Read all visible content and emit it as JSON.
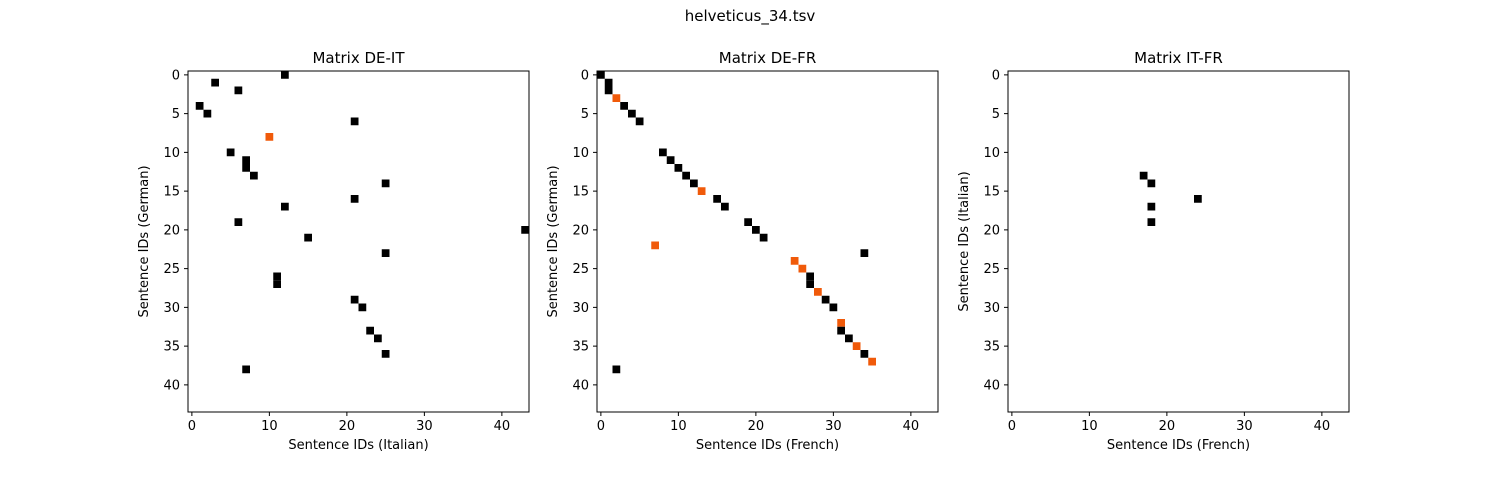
{
  "figure": {
    "suptitle": "helveticus_34.tsv"
  },
  "colors": {
    "match": "#000000",
    "highlight": "#f05a0a"
  },
  "chart_data": [
    {
      "type": "heatmap",
      "title": "Matrix DE-IT",
      "xlabel": "Sentence IDs (Italian)",
      "ylabel": "Sentence IDs (German)",
      "xlim": [
        -0.5,
        43.5
      ],
      "ylim": [
        43.5,
        -0.5
      ],
      "xticks": [
        0,
        10,
        20,
        30,
        40
      ],
      "yticks": [
        0,
        5,
        10,
        15,
        20,
        25,
        30,
        35,
        40
      ],
      "cells": [
        {
          "x": 12,
          "y": 0,
          "v": "match"
        },
        {
          "x": 3,
          "y": 1,
          "v": "match"
        },
        {
          "x": 6,
          "y": 2,
          "v": "match"
        },
        {
          "x": 1,
          "y": 4,
          "v": "match"
        },
        {
          "x": 2,
          "y": 5,
          "v": "match"
        },
        {
          "x": 21,
          "y": 6,
          "v": "match"
        },
        {
          "x": 10,
          "y": 8,
          "v": "highlight"
        },
        {
          "x": 5,
          "y": 10,
          "v": "match"
        },
        {
          "x": 7,
          "y": 11,
          "v": "match"
        },
        {
          "x": 7,
          "y": 12,
          "v": "match"
        },
        {
          "x": 8,
          "y": 13,
          "v": "match"
        },
        {
          "x": 25,
          "y": 14,
          "v": "match"
        },
        {
          "x": 21,
          "y": 16,
          "v": "match"
        },
        {
          "x": 12,
          "y": 17,
          "v": "match"
        },
        {
          "x": 6,
          "y": 19,
          "v": "match"
        },
        {
          "x": 43,
          "y": 20,
          "v": "match"
        },
        {
          "x": 15,
          "y": 21,
          "v": "match"
        },
        {
          "x": 25,
          "y": 23,
          "v": "match"
        },
        {
          "x": 11,
          "y": 26,
          "v": "match"
        },
        {
          "x": 11,
          "y": 27,
          "v": "match"
        },
        {
          "x": 21,
          "y": 29,
          "v": "match"
        },
        {
          "x": 22,
          "y": 30,
          "v": "match"
        },
        {
          "x": 23,
          "y": 33,
          "v": "match"
        },
        {
          "x": 24,
          "y": 34,
          "v": "match"
        },
        {
          "x": 25,
          "y": 36,
          "v": "match"
        },
        {
          "x": 7,
          "y": 38,
          "v": "match"
        }
      ]
    },
    {
      "type": "heatmap",
      "title": "Matrix DE-FR",
      "xlabel": "Sentence IDs (French)",
      "ylabel": "Sentence IDs (German)",
      "xlim": [
        -0.5,
        43.5
      ],
      "ylim": [
        43.5,
        -0.5
      ],
      "xticks": [
        0,
        10,
        20,
        30,
        40
      ],
      "yticks": [
        0,
        5,
        10,
        15,
        20,
        25,
        30,
        35,
        40
      ],
      "cells": [
        {
          "x": 0,
          "y": 0,
          "v": "match"
        },
        {
          "x": 1,
          "y": 1,
          "v": "match"
        },
        {
          "x": 1,
          "y": 2,
          "v": "match"
        },
        {
          "x": 2,
          "y": 3,
          "v": "highlight"
        },
        {
          "x": 3,
          "y": 4,
          "v": "match"
        },
        {
          "x": 4,
          "y": 5,
          "v": "match"
        },
        {
          "x": 5,
          "y": 6,
          "v": "match"
        },
        {
          "x": 8,
          "y": 10,
          "v": "match"
        },
        {
          "x": 9,
          "y": 11,
          "v": "match"
        },
        {
          "x": 10,
          "y": 12,
          "v": "match"
        },
        {
          "x": 11,
          "y": 13,
          "v": "match"
        },
        {
          "x": 12,
          "y": 14,
          "v": "match"
        },
        {
          "x": 13,
          "y": 15,
          "v": "highlight"
        },
        {
          "x": 15,
          "y": 16,
          "v": "match"
        },
        {
          "x": 16,
          "y": 17,
          "v": "match"
        },
        {
          "x": 19,
          "y": 19,
          "v": "match"
        },
        {
          "x": 20,
          "y": 20,
          "v": "match"
        },
        {
          "x": 21,
          "y": 21,
          "v": "match"
        },
        {
          "x": 7,
          "y": 22,
          "v": "highlight"
        },
        {
          "x": 34,
          "y": 23,
          "v": "match"
        },
        {
          "x": 25,
          "y": 24,
          "v": "highlight"
        },
        {
          "x": 26,
          "y": 25,
          "v": "highlight"
        },
        {
          "x": 27,
          "y": 26,
          "v": "match"
        },
        {
          "x": 27,
          "y": 27,
          "v": "match"
        },
        {
          "x": 28,
          "y": 28,
          "v": "highlight"
        },
        {
          "x": 29,
          "y": 29,
          "v": "match"
        },
        {
          "x": 30,
          "y": 30,
          "v": "match"
        },
        {
          "x": 31,
          "y": 32,
          "v": "highlight"
        },
        {
          "x": 31,
          "y": 33,
          "v": "match"
        },
        {
          "x": 32,
          "y": 34,
          "v": "match"
        },
        {
          "x": 33,
          "y": 35,
          "v": "highlight"
        },
        {
          "x": 34,
          "y": 36,
          "v": "match"
        },
        {
          "x": 35,
          "y": 37,
          "v": "highlight"
        },
        {
          "x": 2,
          "y": 38,
          "v": "match"
        }
      ]
    },
    {
      "type": "heatmap",
      "title": "Matrix IT-FR",
      "xlabel": "Sentence IDs (French)",
      "ylabel": "Sentence IDs (Italian)",
      "xlim": [
        -0.5,
        43.5
      ],
      "ylim": [
        43.5,
        -0.5
      ],
      "xticks": [
        0,
        10,
        20,
        30,
        40
      ],
      "yticks": [
        0,
        5,
        10,
        15,
        20,
        25,
        30,
        35,
        40
      ],
      "cells": [
        {
          "x": 17,
          "y": 13,
          "v": "match"
        },
        {
          "x": 18,
          "y": 14,
          "v": "match"
        },
        {
          "x": 24,
          "y": 16,
          "v": "match"
        },
        {
          "x": 18,
          "y": 17,
          "v": "match"
        },
        {
          "x": 18,
          "y": 19,
          "v": "match"
        }
      ]
    }
  ]
}
